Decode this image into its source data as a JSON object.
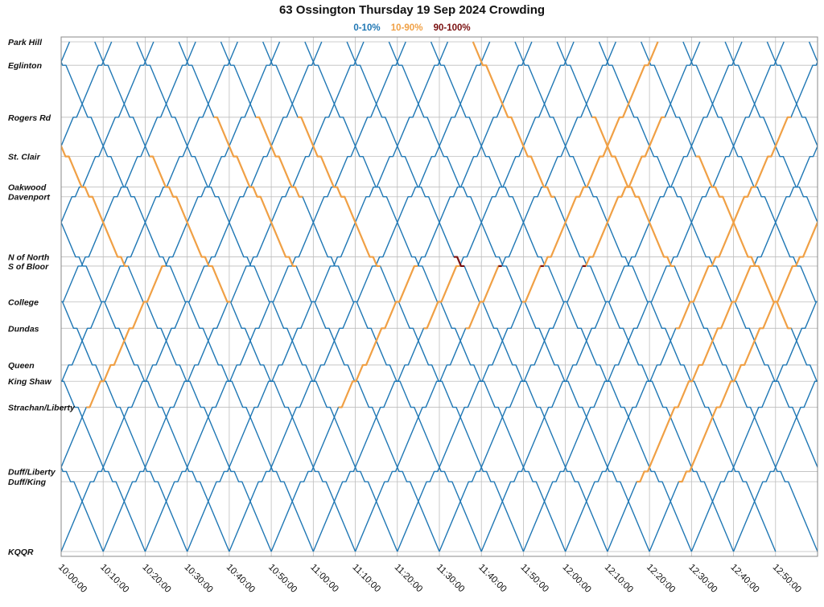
{
  "chart_data": {
    "type": "line",
    "title": "63 Ossington Thursday 19 Sep 2024 Crowding",
    "legend": [
      {
        "label": "0-10%",
        "color": "#1f77b4"
      },
      {
        "label": "10-90%",
        "color": "#f0a045"
      },
      {
        "label": "90-100%",
        "color": "#7a1010"
      }
    ],
    "legend_placement": "top-center",
    "grid": true,
    "x_ticks": [
      "10:00:00",
      "10:10:00",
      "10:20:00",
      "10:30:00",
      "10:40:00",
      "10:50:00",
      "11:00:00",
      "11:10:00",
      "11:20:00",
      "11:30:00",
      "11:40:00",
      "11:50:00",
      "12:00:00",
      "12:10:00",
      "12:20:00",
      "12:30:00",
      "12:40:00",
      "12:50:00"
    ],
    "xlim": [
      "10:00:00",
      "13:00:00"
    ],
    "stops": [
      {
        "name": "Park Hill",
        "pos": 0.0
      },
      {
        "name": "Eglinton",
        "pos": 0.046
      },
      {
        "name": "Rogers Rd",
        "pos": 0.148
      },
      {
        "name": "St. Clair",
        "pos": 0.225
      },
      {
        "name": "Oakwood",
        "pos": 0.285
      },
      {
        "name": "Davenport",
        "pos": 0.304
      },
      {
        "name": "N of North",
        "pos": 0.422
      },
      {
        "name": "S of Bloor",
        "pos": 0.44
      },
      {
        "name": "College",
        "pos": 0.51
      },
      {
        "name": "Dundas",
        "pos": 0.562
      },
      {
        "name": "Queen",
        "pos": 0.634
      },
      {
        "name": "King Shaw",
        "pos": 0.666
      },
      {
        "name": "Strachan/Liberty",
        "pos": 0.717
      },
      {
        "name": "Duff/Liberty",
        "pos": 0.843
      },
      {
        "name": "Duff/King",
        "pos": 0.863
      },
      {
        "name": "KQQR",
        "pos": 1.0
      }
    ],
    "southbound_departures_min": [
      -62,
      -52,
      -42,
      -32,
      -22,
      -12,
      -2,
      8,
      18,
      28,
      38,
      48,
      58,
      68,
      78,
      88,
      98,
      108,
      118,
      128,
      138,
      148,
      158,
      168,
      178
    ],
    "northbound_departures_min": [
      -80,
      -70,
      -60,
      -50,
      -40,
      -30,
      -20,
      -10,
      0,
      10,
      20,
      30,
      40,
      50,
      60,
      70,
      80,
      90,
      100,
      110,
      120,
      130,
      140,
      150,
      160
    ],
    "trip_duration_min": 62,
    "crowded_trips": [
      {
        "direction": "south",
        "depart_min": -12,
        "from": 0.1,
        "to": 0.46,
        "level": "10-90%"
      },
      {
        "direction": "south",
        "depart_min": 8,
        "from": 0.15,
        "to": 0.56,
        "level": "10-90%"
      },
      {
        "direction": "south",
        "depart_min": 28,
        "from": 0.05,
        "to": 0.44,
        "level": "10-90%"
      },
      {
        "direction": "south",
        "depart_min": 38,
        "from": 0.05,
        "to": 0.42,
        "level": "10-90%"
      },
      {
        "direction": "south",
        "depart_min": 48,
        "from": 0.05,
        "to": 0.45,
        "level": "10-90%"
      },
      {
        "direction": "south",
        "depart_min": 98,
        "from": 0.0,
        "to": 0.42,
        "level": "10-90%"
      },
      {
        "direction": "south",
        "depart_min": 118,
        "from": 0.1,
        "to": 0.5,
        "level": "10-90%"
      },
      {
        "direction": "south",
        "depart_min": 138,
        "from": 0.2,
        "to": 0.58,
        "level": "10-90%"
      },
      {
        "direction": "north",
        "depart_min": -10,
        "from": 0.72,
        "to": 0.44,
        "level": "10-90%"
      },
      {
        "direction": "north",
        "depart_min": 50,
        "from": 0.72,
        "to": 0.44,
        "level": "10-90%"
      },
      {
        "direction": "north",
        "depart_min": 60,
        "from": 0.6,
        "to": 0.44,
        "level": "10-90%"
      },
      {
        "direction": "north",
        "depart_min": 70,
        "from": 0.6,
        "to": 0.44,
        "level": "10-90%"
      },
      {
        "direction": "north",
        "depart_min": 80,
        "from": 0.55,
        "to": 0.0,
        "level": "10-90%"
      },
      {
        "direction": "north",
        "depart_min": 90,
        "from": 0.45,
        "to": 0.05,
        "level": "10-90%"
      },
      {
        "direction": "north",
        "depart_min": 120,
        "from": 0.6,
        "to": 0.1,
        "level": "10-90%"
      },
      {
        "direction": "north",
        "depart_min": 130,
        "from": 0.9,
        "to": 0.44,
        "level": "10-90%"
      },
      {
        "direction": "north",
        "depart_min": 140,
        "from": 0.9,
        "to": 0.3,
        "level": "10-90%"
      },
      {
        "direction": "south",
        "depart_min": 68,
        "from": 0.38,
        "to": 0.44,
        "level": "90-100%"
      },
      {
        "direction": "north",
        "depart_min": 70,
        "from": 0.5,
        "to": 0.44,
        "level": "90-100%"
      },
      {
        "direction": "north",
        "depart_min": 80,
        "from": 0.5,
        "to": 0.44,
        "level": "90-100%"
      },
      {
        "direction": "north",
        "depart_min": 90,
        "from": 0.5,
        "to": 0.44,
        "level": "90-100%"
      }
    ]
  }
}
